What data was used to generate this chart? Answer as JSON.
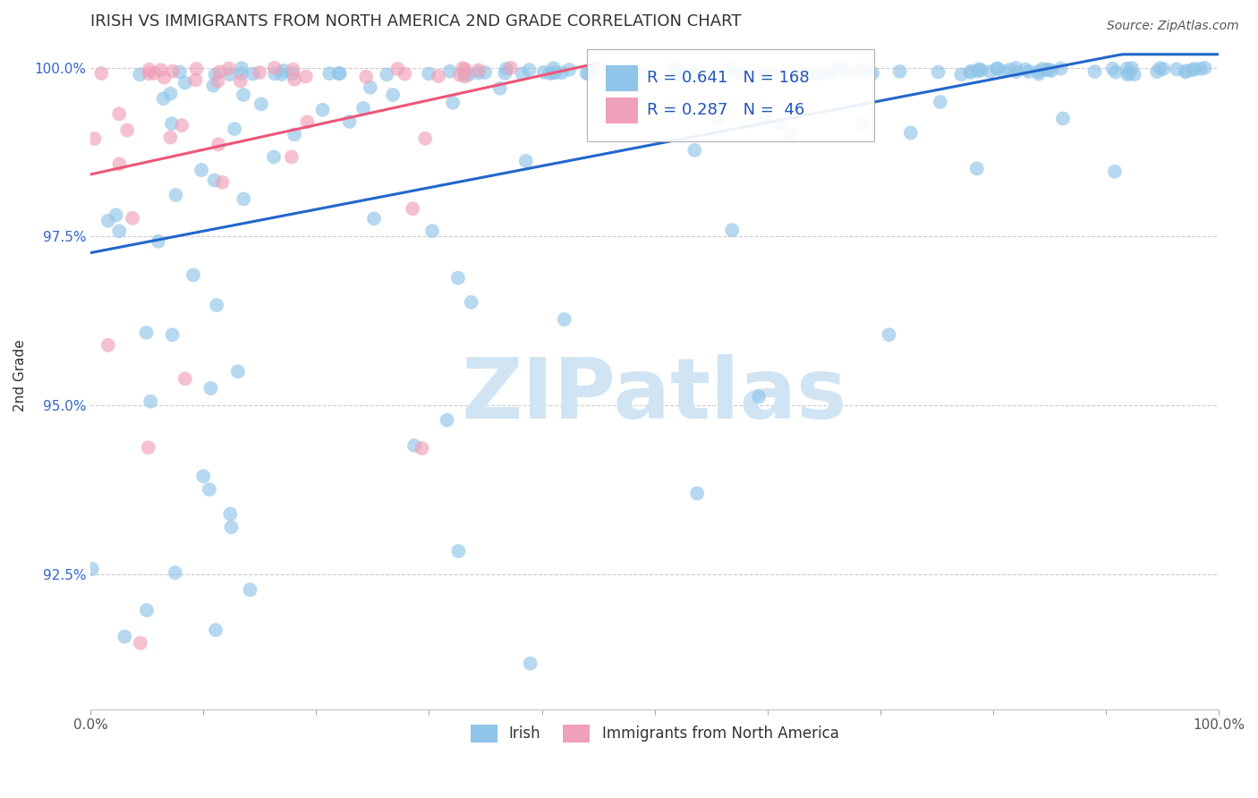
{
  "title": "IRISH VS IMMIGRANTS FROM NORTH AMERICA 2ND GRADE CORRELATION CHART",
  "source": "Source: ZipAtlas.com",
  "ylabel": "2nd Grade",
  "xlim": [
    0.0,
    1.0
  ],
  "ylim": [
    0.905,
    1.004
  ],
  "yticks": [
    0.925,
    0.95,
    0.975,
    1.0
  ],
  "ytick_labels": [
    "92.5%",
    "95.0%",
    "97.5%",
    "100.0%"
  ],
  "xticks": [
    0.0,
    0.1,
    0.2,
    0.3,
    0.4,
    0.5,
    0.6,
    0.7,
    0.8,
    0.9,
    1.0
  ],
  "xtick_labels": [
    "0.0%",
    "",
    "",
    "",
    "",
    "",
    "",
    "",
    "",
    "",
    "100.0%"
  ],
  "blue_color": "#90C4E8",
  "pink_color": "#F0A0B8",
  "blue_line_color": "#2266CC",
  "pink_line_color": "#EE5577",
  "legend_text_color": "#2255BB",
  "watermark_color": "#D0E4F4",
  "watermark": "ZIPatlas",
  "R_blue": 0.641,
  "N_blue": 168,
  "R_pink": 0.287,
  "N_pink": 46,
  "background_color": "#FFFFFF",
  "grid_color": "#CCCCCC",
  "title_fontsize": 13,
  "axis_label_fontsize": 11,
  "tick_fontsize": 11,
  "source_fontsize": 10,
  "ytick_color": "#3366CC",
  "xtick_color": "#555555",
  "dot_size": 130,
  "dot_alpha": 0.65
}
